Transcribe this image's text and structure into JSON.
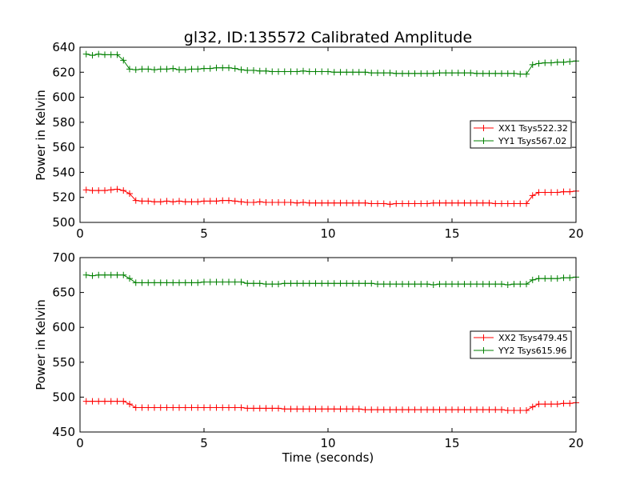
{
  "chart_data": [
    {
      "type": "line",
      "title": "gl32, ID:135572 Calibrated Amplitude",
      "xlabel": "",
      "ylabel": "Power in Kelvin",
      "xlim": [
        0,
        20
      ],
      "ylim": [
        500,
        640
      ],
      "xticks": [
        0,
        5,
        10,
        15,
        20
      ],
      "yticks": [
        500,
        520,
        540,
        560,
        580,
        600,
        620,
        640
      ],
      "grid": false,
      "legend_position": "center-right",
      "series": [
        {
          "name": "XX1 Tsys522.32",
          "color": "#ff0000",
          "x": [
            0.25,
            0.5,
            0.75,
            1.0,
            1.25,
            1.5,
            1.75,
            2.0,
            2.25,
            2.5,
            2.75,
            3.0,
            3.25,
            3.5,
            3.75,
            4.0,
            4.25,
            4.5,
            4.75,
            5.0,
            5.25,
            5.5,
            5.75,
            6.0,
            6.25,
            6.5,
            6.75,
            7.0,
            7.25,
            7.5,
            7.75,
            8.0,
            8.25,
            8.5,
            8.75,
            9.0,
            9.25,
            9.5,
            9.75,
            10.0,
            10.25,
            10.5,
            10.75,
            11.0,
            11.25,
            11.5,
            11.75,
            12.0,
            12.25,
            12.5,
            12.75,
            13.0,
            13.25,
            13.5,
            13.75,
            14.0,
            14.25,
            14.5,
            14.75,
            15.0,
            15.25,
            15.5,
            15.75,
            16.0,
            16.25,
            16.5,
            16.75,
            17.0,
            17.25,
            17.5,
            17.75,
            18.0,
            18.25,
            18.5,
            18.75,
            19.0,
            19.25,
            19.5,
            19.75,
            20.0
          ],
          "values": [
            526,
            525.5,
            525.5,
            525.5,
            526,
            526.5,
            525.5,
            523,
            517.5,
            517,
            517,
            516.5,
            516.5,
            517,
            516.5,
            517,
            516.5,
            516.5,
            516.5,
            517,
            517,
            517,
            517.5,
            517.5,
            517,
            516.5,
            516,
            516,
            516.5,
            516,
            516,
            516,
            516,
            516,
            515.5,
            516,
            515.5,
            515.5,
            515.5,
            515.5,
            515.5,
            515.5,
            515.5,
            515.5,
            515.5,
            515.5,
            515,
            515,
            515,
            514.5,
            515,
            515,
            515,
            515,
            515,
            515,
            515.5,
            515.5,
            515.5,
            515.5,
            515.5,
            515.5,
            515.5,
            515.5,
            515.5,
            515.5,
            515,
            515,
            515,
            515,
            515,
            515,
            521.5,
            524,
            524,
            524,
            524,
            524.5,
            524.5,
            525
          ]
        },
        {
          "name": "YY1 Tsys567.02",
          "color": "#008000",
          "x": [
            0.25,
            0.5,
            0.75,
            1.0,
            1.25,
            1.5,
            1.75,
            2.0,
            2.25,
            2.5,
            2.75,
            3.0,
            3.25,
            3.5,
            3.75,
            4.0,
            4.25,
            4.5,
            4.75,
            5.0,
            5.25,
            5.5,
            5.75,
            6.0,
            6.25,
            6.5,
            6.75,
            7.0,
            7.25,
            7.5,
            7.75,
            8.0,
            8.25,
            8.5,
            8.75,
            9.0,
            9.25,
            9.5,
            9.75,
            10.0,
            10.25,
            10.5,
            10.75,
            11.0,
            11.25,
            11.5,
            11.75,
            12.0,
            12.25,
            12.5,
            12.75,
            13.0,
            13.25,
            13.5,
            13.75,
            14.0,
            14.25,
            14.5,
            14.75,
            15.0,
            15.25,
            15.5,
            15.75,
            16.0,
            16.25,
            16.5,
            16.75,
            17.0,
            17.25,
            17.5,
            17.75,
            18.0,
            18.25,
            18.5,
            18.75,
            19.0,
            19.25,
            19.5,
            19.75,
            20.0
          ],
          "values": [
            634.5,
            633.5,
            634.5,
            634,
            634,
            634,
            629.5,
            622.5,
            622,
            622.5,
            622.5,
            622,
            622.5,
            622.5,
            623,
            622,
            622,
            622.5,
            622.5,
            623,
            623,
            623.5,
            623.5,
            623.5,
            623,
            622,
            621.5,
            621.5,
            621,
            621,
            620.5,
            620.5,
            620.5,
            620.5,
            620.5,
            621,
            620.5,
            620.5,
            620.5,
            620.5,
            620,
            620,
            620,
            620,
            620,
            620,
            619.5,
            619.5,
            619.5,
            619.5,
            619,
            619,
            619,
            619,
            619,
            619,
            619,
            619.5,
            619.5,
            619.5,
            619.5,
            619.5,
            619.5,
            619,
            619,
            619,
            619,
            619,
            619,
            619,
            618.5,
            618.5,
            626,
            627,
            627.5,
            627.5,
            628,
            628,
            628.5,
            629
          ]
        }
      ]
    },
    {
      "type": "line",
      "title": "",
      "xlabel": "Time (seconds)",
      "ylabel": "Power in Kelvin",
      "xlim": [
        0,
        20
      ],
      "ylim": [
        450,
        700
      ],
      "xticks": [
        0,
        5,
        10,
        15,
        20
      ],
      "yticks": [
        450,
        500,
        550,
        600,
        650,
        700
      ],
      "grid": false,
      "legend_position": "center-right",
      "series": [
        {
          "name": "XX2 Tsys479.45",
          "color": "#ff0000",
          "x": [
            0.25,
            0.5,
            0.75,
            1.0,
            1.25,
            1.5,
            1.75,
            2.0,
            2.25,
            2.5,
            2.75,
            3.0,
            3.25,
            3.5,
            3.75,
            4.0,
            4.25,
            4.5,
            4.75,
            5.0,
            5.25,
            5.5,
            5.75,
            6.0,
            6.25,
            6.5,
            6.75,
            7.0,
            7.25,
            7.5,
            7.75,
            8.0,
            8.25,
            8.5,
            8.75,
            9.0,
            9.25,
            9.5,
            9.75,
            10.0,
            10.25,
            10.5,
            10.75,
            11.0,
            11.25,
            11.5,
            11.75,
            12.0,
            12.25,
            12.5,
            12.75,
            13.0,
            13.25,
            13.5,
            13.75,
            14.0,
            14.25,
            14.5,
            14.75,
            15.0,
            15.25,
            15.5,
            15.75,
            16.0,
            16.25,
            16.5,
            16.75,
            17.0,
            17.25,
            17.5,
            17.75,
            18.0,
            18.25,
            18.5,
            18.75,
            19.0,
            19.25,
            19.5,
            19.75,
            20.0
          ],
          "values": [
            494,
            494,
            494,
            494,
            494,
            494,
            494,
            490,
            485,
            485,
            485,
            485,
            485,
            485,
            485,
            485,
            485,
            485,
            485,
            485,
            485,
            485,
            485,
            485,
            485,
            485,
            484,
            484,
            484,
            484,
            484,
            484,
            483,
            483,
            483,
            483,
            483,
            483,
            483,
            483,
            483,
            483,
            483,
            483,
            483,
            482,
            482,
            482,
            482,
            482,
            482,
            482,
            482,
            482,
            482,
            482,
            482,
            482,
            482,
            482,
            482,
            482,
            482,
            482,
            482,
            482,
            482,
            482,
            481,
            481,
            481,
            481,
            486,
            490,
            490,
            490,
            490,
            491,
            491,
            492
          ]
        },
        {
          "name": "YY2 Tsys615.96",
          "color": "#008000",
          "x": [
            0.25,
            0.5,
            0.75,
            1.0,
            1.25,
            1.5,
            1.75,
            2.0,
            2.25,
            2.5,
            2.75,
            3.0,
            3.25,
            3.5,
            3.75,
            4.0,
            4.25,
            4.5,
            4.75,
            5.0,
            5.25,
            5.5,
            5.75,
            6.0,
            6.25,
            6.5,
            6.75,
            7.0,
            7.25,
            7.5,
            7.75,
            8.0,
            8.25,
            8.5,
            8.75,
            9.0,
            9.25,
            9.5,
            9.75,
            10.0,
            10.25,
            10.5,
            10.75,
            11.0,
            11.25,
            11.5,
            11.75,
            12.0,
            12.25,
            12.5,
            12.75,
            13.0,
            13.25,
            13.5,
            13.75,
            14.0,
            14.25,
            14.5,
            14.75,
            15.0,
            15.25,
            15.5,
            15.75,
            16.0,
            16.25,
            16.5,
            16.75,
            17.0,
            17.25,
            17.5,
            17.75,
            18.0,
            18.25,
            18.5,
            18.75,
            19.0,
            19.25,
            19.5,
            19.75,
            20.0
          ],
          "values": [
            675,
            674,
            675,
            675,
            675,
            675,
            675,
            670,
            664,
            664,
            664,
            664,
            664,
            664,
            664,
            664,
            664,
            664,
            664,
            665,
            665,
            665,
            665,
            665,
            665,
            665,
            663,
            663,
            663,
            662,
            662,
            662,
            663,
            663,
            663,
            663,
            663,
            663,
            663,
            663,
            663,
            663,
            663,
            663,
            663,
            663,
            663,
            662,
            662,
            662,
            662,
            662,
            662,
            662,
            662,
            662,
            661,
            662,
            662,
            662,
            662,
            662,
            662,
            662,
            662,
            662,
            662,
            662,
            661,
            662,
            662,
            662,
            668,
            670,
            670,
            670,
            670,
            671,
            671,
            672
          ]
        }
      ]
    }
  ]
}
